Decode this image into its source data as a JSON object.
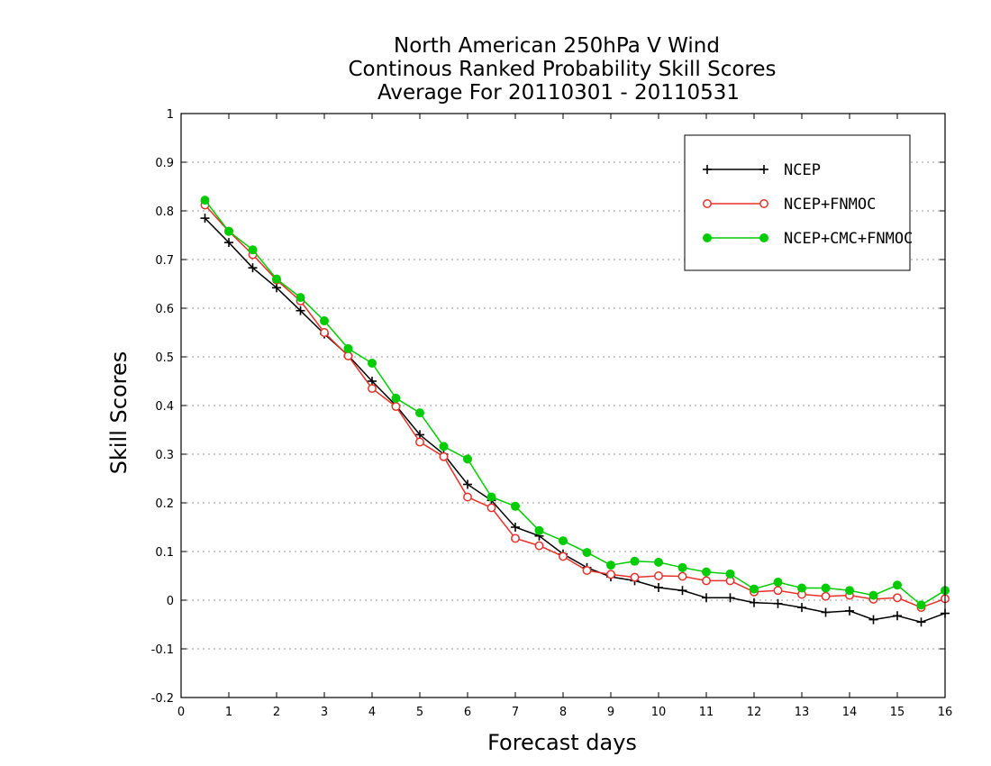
{
  "titles": [
    "North American 250hPa V Wind",
    "Continous Ranked Probability Skill Scores",
    "Average For 20110301 - 20110531"
  ],
  "chart_data": {
    "type": "line",
    "xlabel": "Forecast days",
    "ylabel": "Skill Scores",
    "xlim": [
      0,
      16
    ],
    "ylim": [
      -0.2,
      1
    ],
    "x_ticks": [
      "0",
      "1",
      "2",
      "3",
      "4",
      "5",
      "6",
      "7",
      "8",
      "9",
      "10",
      "11",
      "12",
      "13",
      "14",
      "15",
      "16"
    ],
    "y_ticks": [
      "1",
      "0.9",
      "0.8",
      "0.7",
      "0.6",
      "0.5",
      "0.4",
      "0.3",
      "0.2",
      "0.1",
      "0",
      "-0.1",
      "-0.2"
    ],
    "y_tick_values": [
      1,
      0.9,
      0.8,
      0.7,
      0.6,
      0.5,
      0.4,
      0.3,
      0.2,
      0.1,
      0,
      -0.1,
      -0.2
    ],
    "grid": "horizontal-dotted",
    "legend_position": "top-right",
    "x": [
      0.5,
      1,
      1.5,
      2,
      2.5,
      3,
      3.5,
      4,
      4.5,
      5,
      5.5,
      6,
      6.5,
      7,
      7.5,
      8,
      8.5,
      9,
      9.5,
      10,
      10.5,
      11,
      11.5,
      12,
      12.5,
      13,
      13.5,
      14,
      14.5,
      15,
      15.5,
      16
    ],
    "series": [
      {
        "name": "NCEP",
        "color": "#000000",
        "marker": "plus",
        "values": [
          0.785,
          0.735,
          0.683,
          0.642,
          0.595,
          0.547,
          0.503,
          0.45,
          0.4,
          0.34,
          0.3,
          0.238,
          0.205,
          0.15,
          0.132,
          0.095,
          0.067,
          0.048,
          0.04,
          0.026,
          0.02,
          0.005,
          0.005,
          -0.005,
          -0.007,
          -0.015,
          -0.025,
          -0.022,
          -0.04,
          -0.032,
          -0.045,
          -0.027
        ]
      },
      {
        "name": "NCEP+FNMOC",
        "color": "#e8302a",
        "marker": "open-circle",
        "values": [
          0.812,
          0.758,
          0.71,
          0.658,
          0.615,
          0.55,
          0.502,
          0.435,
          0.398,
          0.325,
          0.295,
          0.212,
          0.19,
          0.127,
          0.112,
          0.09,
          0.061,
          0.053,
          0.047,
          0.05,
          0.049,
          0.04,
          0.04,
          0.017,
          0.02,
          0.012,
          0.008,
          0.01,
          0.002,
          0.005,
          -0.015,
          0.003
        ]
      },
      {
        "name": "NCEP+CMC+FNMOC",
        "color": "#00cc00",
        "marker": "filled-circle",
        "values": [
          0.822,
          0.758,
          0.72,
          0.66,
          0.622,
          0.574,
          0.517,
          0.487,
          0.415,
          0.385,
          0.316,
          0.29,
          0.212,
          0.193,
          0.143,
          0.122,
          0.098,
          0.072,
          0.08,
          0.078,
          0.067,
          0.058,
          0.054,
          0.023,
          0.037,
          0.025,
          0.025,
          0.02,
          0.01,
          0.031,
          -0.01,
          0.02
        ]
      }
    ]
  }
}
